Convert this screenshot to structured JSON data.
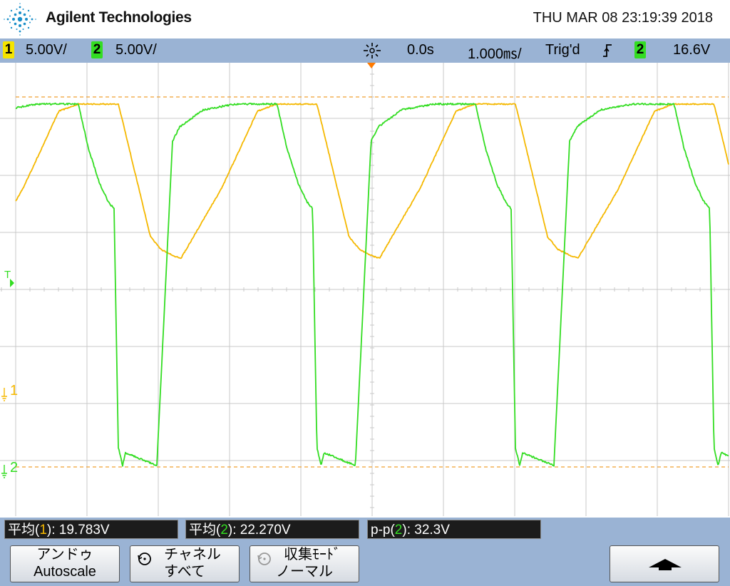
{
  "header": {
    "brand": "Agilent Technologies",
    "datetime": "THU MAR 08 23:19:39 2018"
  },
  "status_bar": {
    "ch1_num": "1",
    "ch1_scale": "5.00V/",
    "ch2_num": "2",
    "ch2_scale": "5.00V/",
    "time_delay": "0.0s",
    "time_scale": "1.000㎳/",
    "trigger_state": "Trig'd",
    "trigger_edge_icon": "rising-edge-icon",
    "trigger_source": "2",
    "trigger_level": "16.6V"
  },
  "markers": {
    "trigger_label": "T",
    "ch1_ground": "1",
    "ch2_ground": "2"
  },
  "colors": {
    "ch1": "#f5b800",
    "ch2": "#33dd22",
    "grid": "#c8c8c8",
    "ref_line": "#f0a030",
    "trigger_marker": "#ff7a00",
    "bar": "#9ab3d4"
  },
  "measurements": [
    {
      "prefix": "平均(",
      "ch": "1",
      "suffix": "): ",
      "value": "19.783V"
    },
    {
      "prefix": "平均(",
      "ch": "2",
      "suffix": "): ",
      "value": "22.270V"
    },
    {
      "prefix": "p-p(",
      "ch": "2",
      "suffix": "): ",
      "value": "32.3V"
    }
  ],
  "softkeys": {
    "autoscale_l1": "アンドゥ",
    "autoscale_l2": "Autoscale",
    "channels_l1": "チャネル",
    "channels_l2": "すべて",
    "acq_l1": "収集ﾓｰﾄﾞ",
    "acq_l2": "ノーマル",
    "up_icon": "up-arrow-icon"
  }
}
